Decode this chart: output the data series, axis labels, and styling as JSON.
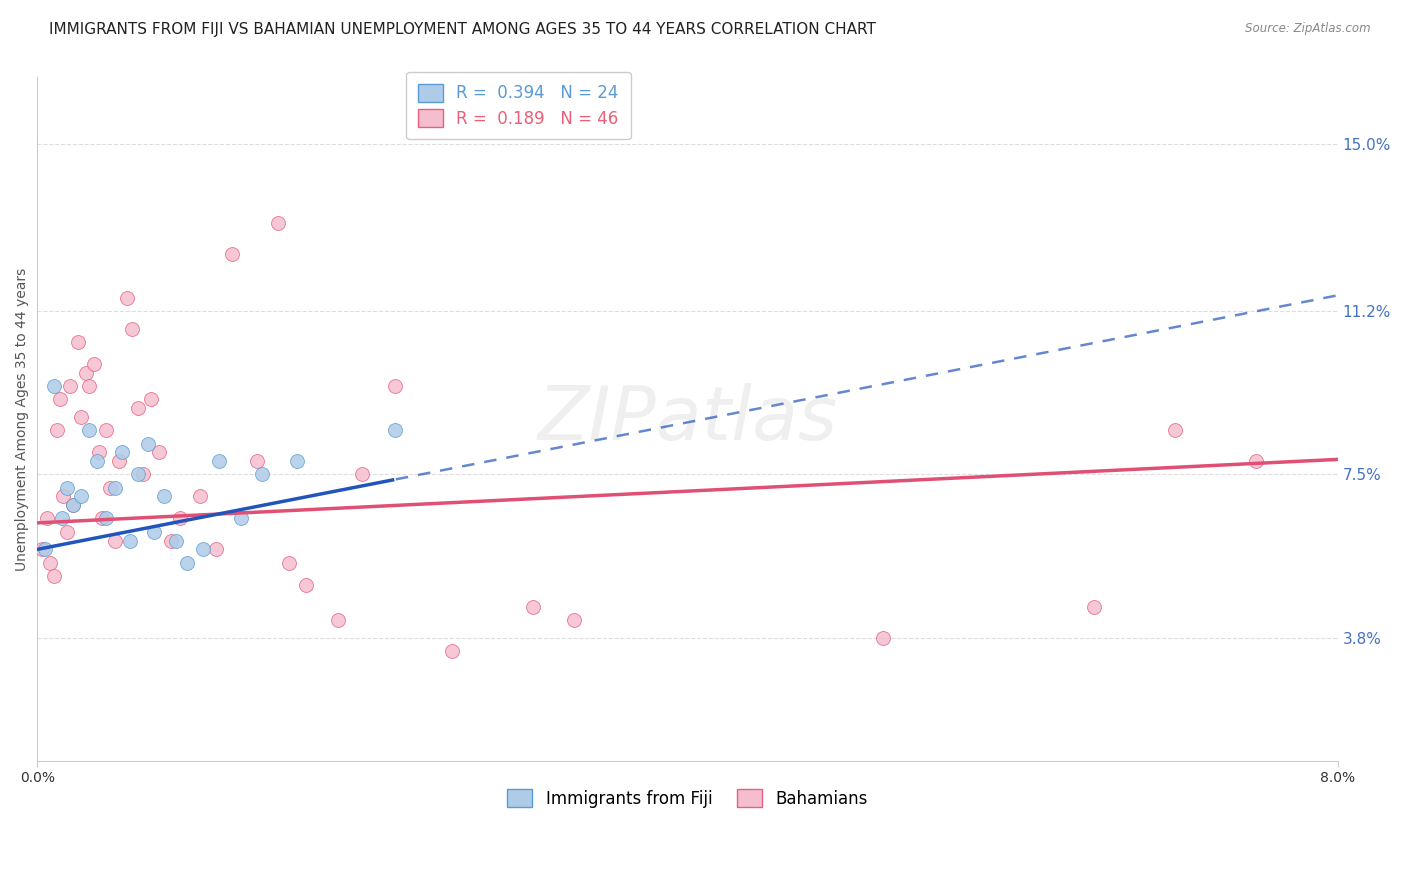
{
  "title": "IMMIGRANTS FROM FIJI VS BAHAMIAN UNEMPLOYMENT AMONG AGES 35 TO 44 YEARS CORRELATION CHART",
  "source": "Source: ZipAtlas.com",
  "ylabel": "Unemployment Among Ages 35 to 44 years",
  "right_ytick_labels": [
    "3.8%",
    "7.5%",
    "11.2%",
    "15.0%"
  ],
  "right_ytick_values": [
    3.8,
    7.5,
    11.2,
    15.0
  ],
  "xmin": 0.0,
  "xmax": 8.0,
  "ymin": 1.0,
  "ymax": 16.5,
  "fiji_color": "#aecce8",
  "fiji_edge_color": "#5b9bd5",
  "bahamas_color": "#f5bdd0",
  "bahamas_edge_color": "#e8607a",
  "fiji_line_color": "#2255bb",
  "bahamas_line_color": "#e05075",
  "fiji_R": 0.394,
  "fiji_N": 24,
  "bahamas_R": 0.189,
  "bahamas_N": 46,
  "fiji_label": "Immigrants from Fiji",
  "bahamas_label": "Bahamians",
  "fiji_intercept": 5.8,
  "fiji_slope": 0.72,
  "bahamas_intercept": 6.4,
  "bahamas_slope": 0.18,
  "fiji_solid_end_x": 2.2,
  "fiji_points_x": [
    0.05,
    0.1,
    0.15,
    0.18,
    0.22,
    0.27,
    0.32,
    0.37,
    0.42,
    0.48,
    0.52,
    0.57,
    0.62,
    0.68,
    0.72,
    0.78,
    0.85,
    0.92,
    1.02,
    1.12,
    1.25,
    1.38,
    1.6,
    2.2
  ],
  "fiji_points_y": [
    5.8,
    9.5,
    6.5,
    7.2,
    6.8,
    7.0,
    8.5,
    7.8,
    6.5,
    7.2,
    8.0,
    6.0,
    7.5,
    8.2,
    6.2,
    7.0,
    6.0,
    5.5,
    5.8,
    7.8,
    6.5,
    7.5,
    7.8,
    8.5
  ],
  "bahamas_points_x": [
    0.03,
    0.06,
    0.08,
    0.1,
    0.12,
    0.14,
    0.16,
    0.18,
    0.2,
    0.22,
    0.25,
    0.27,
    0.3,
    0.32,
    0.35,
    0.38,
    0.4,
    0.42,
    0.45,
    0.48,
    0.5,
    0.55,
    0.58,
    0.62,
    0.65,
    0.7,
    0.75,
    0.82,
    0.88,
    1.0,
    1.1,
    1.2,
    1.35,
    1.48,
    1.55,
    1.65,
    1.85,
    2.0,
    2.2,
    2.55,
    3.05,
    3.3,
    5.2,
    6.5,
    7.0,
    7.5
  ],
  "bahamas_points_y": [
    5.8,
    6.5,
    5.5,
    5.2,
    8.5,
    9.2,
    7.0,
    6.2,
    9.5,
    6.8,
    10.5,
    8.8,
    9.8,
    9.5,
    10.0,
    8.0,
    6.5,
    8.5,
    7.2,
    6.0,
    7.8,
    11.5,
    10.8,
    9.0,
    7.5,
    9.2,
    8.0,
    6.0,
    6.5,
    7.0,
    5.8,
    12.5,
    7.8,
    13.2,
    5.5,
    5.0,
    4.2,
    7.5,
    9.5,
    3.5,
    4.5,
    4.2,
    3.8,
    4.5,
    8.5,
    7.8
  ],
  "grid_color": "#dddddd",
  "background_color": "#ffffff",
  "title_fontsize": 11,
  "axis_fontsize": 10,
  "legend_fontsize": 12,
  "watermark_text": "ZIPatlas"
}
